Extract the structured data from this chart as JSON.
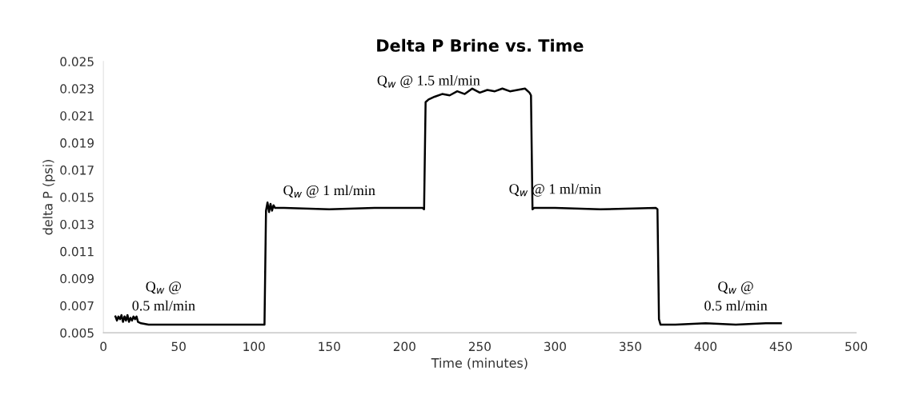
{
  "chart_data": {
    "type": "line",
    "title": "Delta P Brine vs. Time",
    "xlabel": "Time (minutes)",
    "ylabel": "delta P (psi)",
    "xlim": [
      0,
      500
    ],
    "xticks": [
      0,
      50,
      100,
      150,
      200,
      250,
      300,
      350,
      400,
      450,
      500
    ],
    "ylim": [
      0.005,
      0.025
    ],
    "yticks": [
      0.005,
      0.007,
      0.009,
      0.011,
      0.013,
      0.015,
      0.017,
      0.019,
      0.021,
      0.023,
      0.025
    ],
    "grid": false,
    "legend": false,
    "marker": "none",
    "line_style": "solid",
    "series": [
      {
        "color": "#000000",
        "x": [
          8,
          9,
          10,
          11,
          12,
          13,
          14,
          15,
          16,
          17,
          18,
          19,
          20,
          21,
          22,
          23,
          25,
          30,
          60,
          107,
          108,
          109,
          110,
          111,
          112,
          113,
          114,
          120,
          150,
          180,
          212,
          213,
          214,
          216,
          220,
          225,
          230,
          235,
          240,
          245,
          250,
          255,
          260,
          265,
          270,
          275,
          280,
          283,
          284,
          285,
          286,
          300,
          330,
          367,
          368,
          369,
          370,
          380,
          400,
          420,
          440,
          450
        ],
        "values": [
          0.0062,
          0.0059,
          0.0062,
          0.006,
          0.0063,
          0.0058,
          0.0062,
          0.0059,
          0.0063,
          0.0058,
          0.0061,
          0.0059,
          0.0062,
          0.006,
          0.0062,
          0.0058,
          0.0057,
          0.0056,
          0.0056,
          0.0056,
          0.014,
          0.0146,
          0.0139,
          0.0145,
          0.014,
          0.0144,
          0.0142,
          0.0142,
          0.0141,
          0.0142,
          0.0142,
          0.0141,
          0.022,
          0.0222,
          0.0224,
          0.0226,
          0.0225,
          0.0228,
          0.0226,
          0.023,
          0.0227,
          0.0229,
          0.0228,
          0.023,
          0.0228,
          0.0229,
          0.023,
          0.0227,
          0.0225,
          0.0141,
          0.0142,
          0.0142,
          0.0141,
          0.0142,
          0.0141,
          0.006,
          0.0056,
          0.0056,
          0.0057,
          0.0056,
          0.0057,
          0.0057
        ]
      }
    ],
    "annotations": [
      {
        "text": "Q$_{w}$ @\n0.5 ml/min",
        "x": 40,
        "y": 0.0056
      },
      {
        "text": "Q$_{w}$ @ 1 ml/min",
        "x": 150,
        "y": 0.0141
      },
      {
        "text": "Q$_{w}$ @ 1.5 ml/min",
        "x": 216,
        "y": 0.0222
      },
      {
        "text": "Q$_{w}$ @ 1 ml/min",
        "x": 300,
        "y": 0.0142
      },
      {
        "text": "Q$_{w}$ @\n0.5 ml/min",
        "x": 420,
        "y": 0.0056
      }
    ]
  }
}
